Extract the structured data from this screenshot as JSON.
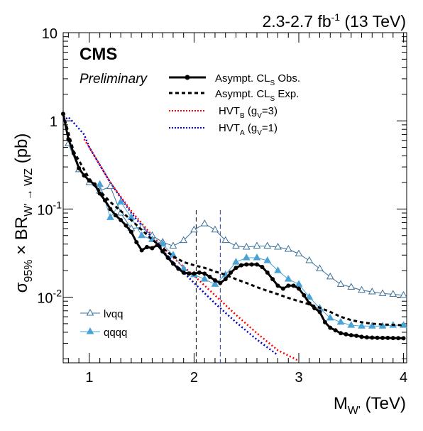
{
  "header": {
    "lumi_text": "2.3-2.7 fb",
    "lumi_sup": "-1",
    "energy_text": " (13 TeV)",
    "experiment": "CMS",
    "status": "Preliminary"
  },
  "legend": {
    "obs_label": "Asympt. CL",
    "obs_sub": "S",
    "obs_suffix": " Obs.",
    "exp_label": "Asympt. CL",
    "exp_sub": "S",
    "exp_suffix": " Exp.",
    "hvtb_label": "HVT",
    "hvtb_sub": "B",
    "hvtb_mid": " (g",
    "hvtb_sub2": "V",
    "hvtb_end": "=3)",
    "hvta_label": "HVT",
    "hvta_sub": "A",
    "hvta_mid": " (g",
    "hvta_sub2": "V",
    "hvta_end": "=1)",
    "lvqq_label": "lvqq",
    "qqqq_label": "qqqq"
  },
  "axes": {
    "y_sigma": "σ",
    "y_sigma_sub": "95%",
    "y_times": " × BR",
    "y_br_sub": "W' → WZ",
    "y_unit": " (pb)",
    "x_m": "M",
    "x_m_sub": "W'",
    "x_unit": " (TeV)"
  },
  "colors": {
    "observed": "#000000",
    "expected": "#000000",
    "hvt_b": "#ff0000",
    "hvt_a": "#0000cc",
    "lvqq": "#3a6f96",
    "qqqq": "#4aa3d6"
  },
  "chart_data": {
    "type": "line",
    "title": "",
    "xlabel": "M_W' (TeV)",
    "ylabel": "σ95% × BR_W'→WZ (pb)",
    "xlim": [
      0.75,
      4.03
    ],
    "ylim": [
      0.0018,
      10
    ],
    "yscale": "log",
    "x_ticks": [
      1,
      2,
      3,
      4
    ],
    "x_tick_labels": [
      "1",
      "2",
      "3",
      "4"
    ],
    "y_ticks": [
      0.01,
      0.1,
      1,
      10
    ],
    "y_tick_labels": [
      "10^-2",
      "10^-1",
      "1",
      "10"
    ],
    "vertical_lines": [
      2.02,
      2.25
    ],
    "series": [
      {
        "name": "Asympt. CLS Obs.",
        "style": "solid-markers",
        "x": [
          0.75,
          0.8,
          0.85,
          0.9,
          0.95,
          1.0,
          1.05,
          1.1,
          1.15,
          1.2,
          1.25,
          1.3,
          1.35,
          1.4,
          1.45,
          1.5,
          1.55,
          1.6,
          1.65,
          1.7,
          1.75,
          1.8,
          1.85,
          1.9,
          1.95,
          2.0,
          2.05,
          2.1,
          2.15,
          2.2,
          2.25,
          2.3,
          2.35,
          2.4,
          2.45,
          2.5,
          2.55,
          2.6,
          2.65,
          2.7,
          2.75,
          2.8,
          2.85,
          2.9,
          2.95,
          3.0,
          3.05,
          3.1,
          3.15,
          3.2,
          3.25,
          3.3,
          3.35,
          3.4,
          3.45,
          3.5,
          3.55,
          3.6,
          3.65,
          3.7,
          3.75,
          3.8,
          3.85,
          3.9,
          3.95,
          4.0
        ],
        "y": [
          1.2,
          0.62,
          0.43,
          0.29,
          0.24,
          0.21,
          0.19,
          0.15,
          0.125,
          0.1,
          0.085,
          0.075,
          0.065,
          0.055,
          0.042,
          0.034,
          0.037,
          0.036,
          0.039,
          0.033,
          0.028,
          0.024,
          0.021,
          0.019,
          0.0185,
          0.0185,
          0.019,
          0.0185,
          0.017,
          0.0155,
          0.0145,
          0.016,
          0.019,
          0.0215,
          0.023,
          0.0235,
          0.0235,
          0.0235,
          0.022,
          0.019,
          0.016,
          0.0135,
          0.0125,
          0.0135,
          0.0135,
          0.0125,
          0.0105,
          0.0085,
          0.0075,
          0.0068,
          0.0052,
          0.0045,
          0.0042,
          0.0039,
          0.0038,
          0.0037,
          0.00365,
          0.00355,
          0.0035,
          0.00348,
          0.00346,
          0.00345,
          0.00345,
          0.00344,
          0.00343,
          0.00342
        ]
      },
      {
        "name": "Asympt. CLS Exp.",
        "style": "dashed",
        "x": [
          0.75,
          0.85,
          1.0,
          1.1,
          1.2,
          1.3,
          1.4,
          1.5,
          1.6,
          1.7,
          1.8,
          1.9,
          2.0,
          2.1,
          2.2,
          2.3,
          2.4,
          2.5,
          2.6,
          2.7,
          2.8,
          2.9,
          3.0,
          3.1,
          3.2,
          3.3,
          3.4,
          3.5,
          3.6,
          3.7,
          3.8,
          3.9,
          4.0
        ],
        "y": [
          1.2,
          0.45,
          0.22,
          0.16,
          0.12,
          0.095,
          0.075,
          0.058,
          0.045,
          0.036,
          0.029,
          0.025,
          0.023,
          0.0215,
          0.0195,
          0.018,
          0.016,
          0.0145,
          0.013,
          0.0118,
          0.0108,
          0.0098,
          0.009,
          0.0083,
          0.0076,
          0.0068,
          0.006,
          0.0055,
          0.0052,
          0.005,
          0.0049,
          0.00485,
          0.0048
        ]
      },
      {
        "name": "HVTB (gV=3)",
        "style": "dotted",
        "x": [
          0.95,
          1.0,
          1.2,
          1.4,
          1.6,
          1.8,
          2.0,
          2.2,
          2.4,
          2.6,
          2.8,
          3.0,
          3.1
        ],
        "y": [
          0.62,
          0.5,
          0.2,
          0.095,
          0.05,
          0.028,
          0.0175,
          0.0105,
          0.0063,
          0.0039,
          0.0025,
          0.0019,
          0.0016
        ]
      },
      {
        "name": "HVTA (gV=1)",
        "style": "dotted",
        "x": [
          0.75,
          0.8,
          0.85,
          0.95,
          1.0,
          1.2,
          1.4,
          1.6,
          1.8,
          2.0,
          2.2,
          2.4,
          2.6,
          2.8,
          3.0
        ],
        "y": [
          1.0,
          1.1,
          0.95,
          0.7,
          0.5,
          0.2,
          0.09,
          0.047,
          0.025,
          0.0145,
          0.0085,
          0.0052,
          0.0033,
          0.0022,
          0.0016
        ]
      },
      {
        "name": "lvqq",
        "style": "open-triangles",
        "x": [
          0.8,
          0.9,
          1.0,
          1.1,
          1.2,
          1.3,
          1.4,
          1.5,
          1.6,
          1.7,
          1.8,
          1.9,
          2.0,
          2.1,
          2.2,
          2.3,
          2.4,
          2.5,
          2.6,
          2.7,
          2.8,
          2.9,
          3.0,
          3.1,
          3.2,
          3.3,
          3.4,
          3.5,
          3.6,
          3.7,
          3.8,
          3.9,
          4.0
        ],
        "y": [
          0.55,
          0.28,
          0.2,
          0.16,
          0.18,
          0.09,
          0.06,
          0.062,
          0.05,
          0.042,
          0.038,
          0.044,
          0.058,
          0.068,
          0.058,
          0.044,
          0.038,
          0.037,
          0.038,
          0.038,
          0.037,
          0.035,
          0.031,
          0.026,
          0.021,
          0.017,
          0.014,
          0.013,
          0.012,
          0.0115,
          0.011,
          0.0108,
          0.0105
        ]
      },
      {
        "name": "qqqq",
        "style": "filled-triangles",
        "x": [
          1.1,
          1.2,
          1.3,
          1.4,
          1.5,
          1.6,
          1.7,
          1.8,
          1.9,
          2.0,
          2.1,
          2.2,
          2.3,
          2.4,
          2.5,
          2.6,
          2.7,
          2.8,
          2.9,
          3.0,
          3.1,
          3.2,
          3.3,
          3.4,
          3.5,
          3.6,
          3.7,
          3.8,
          3.9,
          4.0
        ],
        "y": [
          0.19,
          0.08,
          0.12,
          0.08,
          0.05,
          0.045,
          0.04,
          0.03,
          0.021,
          0.018,
          0.016,
          0.014,
          0.018,
          0.025,
          0.028,
          0.028,
          0.026,
          0.02,
          0.016,
          0.014,
          0.01,
          0.0075,
          0.0058,
          0.0052,
          0.0048,
          0.0047,
          0.0047,
          0.0047,
          0.0048,
          0.0048
        ]
      }
    ]
  }
}
